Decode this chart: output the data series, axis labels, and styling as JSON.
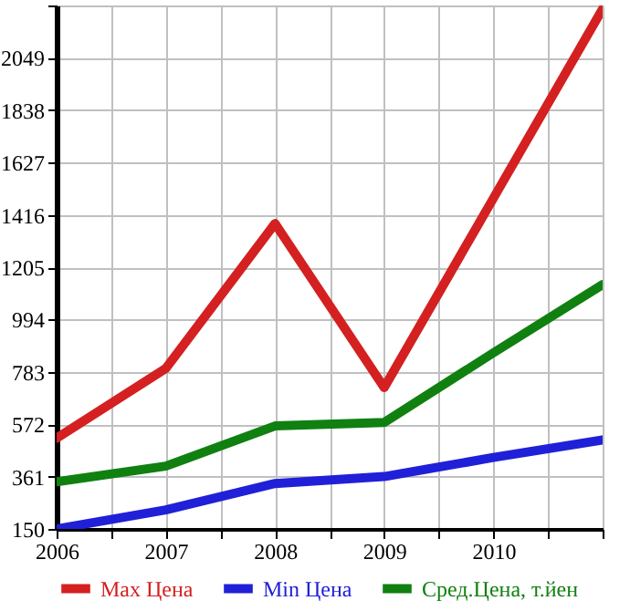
{
  "chart_data": {
    "type": "line",
    "x": [
      2006,
      2007,
      2008,
      2009,
      2010,
      2011
    ],
    "series": [
      {
        "name": "Max Цена",
        "color": "#d42020",
        "values": [
          516,
          797,
          1381,
          720,
          1483,
          2246
        ]
      },
      {
        "name": "Min Цена",
        "color": "#2020d8",
        "values": [
          150,
          227,
          333,
          361,
          438,
          509
        ]
      },
      {
        "name": "Сред.Цена, т.йен",
        "color": "#108010",
        "values": [
          340,
          403,
          565,
          579,
          860,
          1135
        ]
      }
    ],
    "xlim": [
      2006,
      2011
    ],
    "xticks": [
      2006,
      {
        "value": 2006.5,
        "label": null
      },
      2007,
      {
        "value": 2007.5,
        "label": null
      },
      2008,
      {
        "value": 2008.5,
        "label": null
      },
      2009,
      {
        "value": 2009.5,
        "label": null
      },
      2010,
      {
        "value": 2010.5,
        "label": null
      },
      {
        "value": 2011,
        "label": null
      }
    ],
    "ylim": [
      150,
      2260
    ],
    "yticks": [
      150,
      361,
      572,
      783,
      994,
      1205,
      1416,
      1627,
      1838,
      2049,
      {
        "value": 2260,
        "label": null
      }
    ],
    "grid": true,
    "legend": "bottom",
    "marker": "none",
    "line_style": "solid"
  }
}
